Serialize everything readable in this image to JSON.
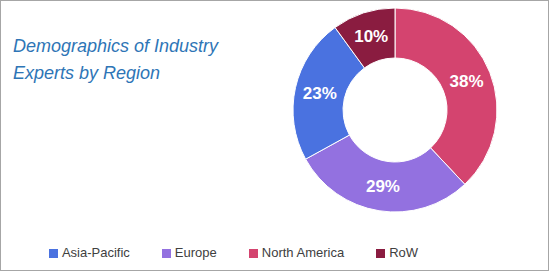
{
  "chart_data": {
    "type": "pie",
    "title": "Demographics of Industry Experts by Region",
    "categories": [
      "North America",
      "Europe",
      "Asia-Pacific",
      "RoW"
    ],
    "values": [
      38,
      29,
      23,
      10
    ],
    "value_labels": [
      "38%",
      "29%",
      "23%",
      "10%"
    ],
    "colors": [
      "#d4446f",
      "#9371e0",
      "#4a72e0",
      "#8a1c40"
    ],
    "data_labels": true,
    "legend": "bottom"
  }
}
